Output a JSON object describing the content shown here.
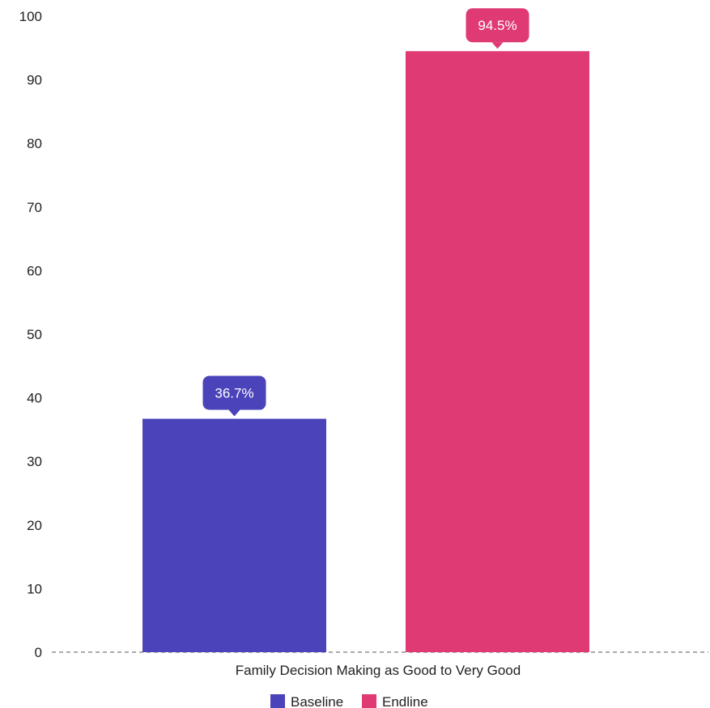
{
  "chart_data": {
    "type": "bar",
    "categories": [
      "Family Decision Making as Good to Very Good"
    ],
    "series": [
      {
        "name": "Baseline",
        "values": [
          36.7
        ],
        "label": "36.7%",
        "color": "#4b43b9"
      },
      {
        "name": "Endline",
        "values": [
          94.5
        ],
        "label": "94.5%",
        "color": "#df3a74"
      }
    ],
    "ylim": [
      0,
      100
    ],
    "yticks": [
      0,
      10,
      20,
      30,
      40,
      50,
      60,
      70,
      80,
      90,
      100
    ],
    "legend": "bottom-center",
    "grid": false
  }
}
